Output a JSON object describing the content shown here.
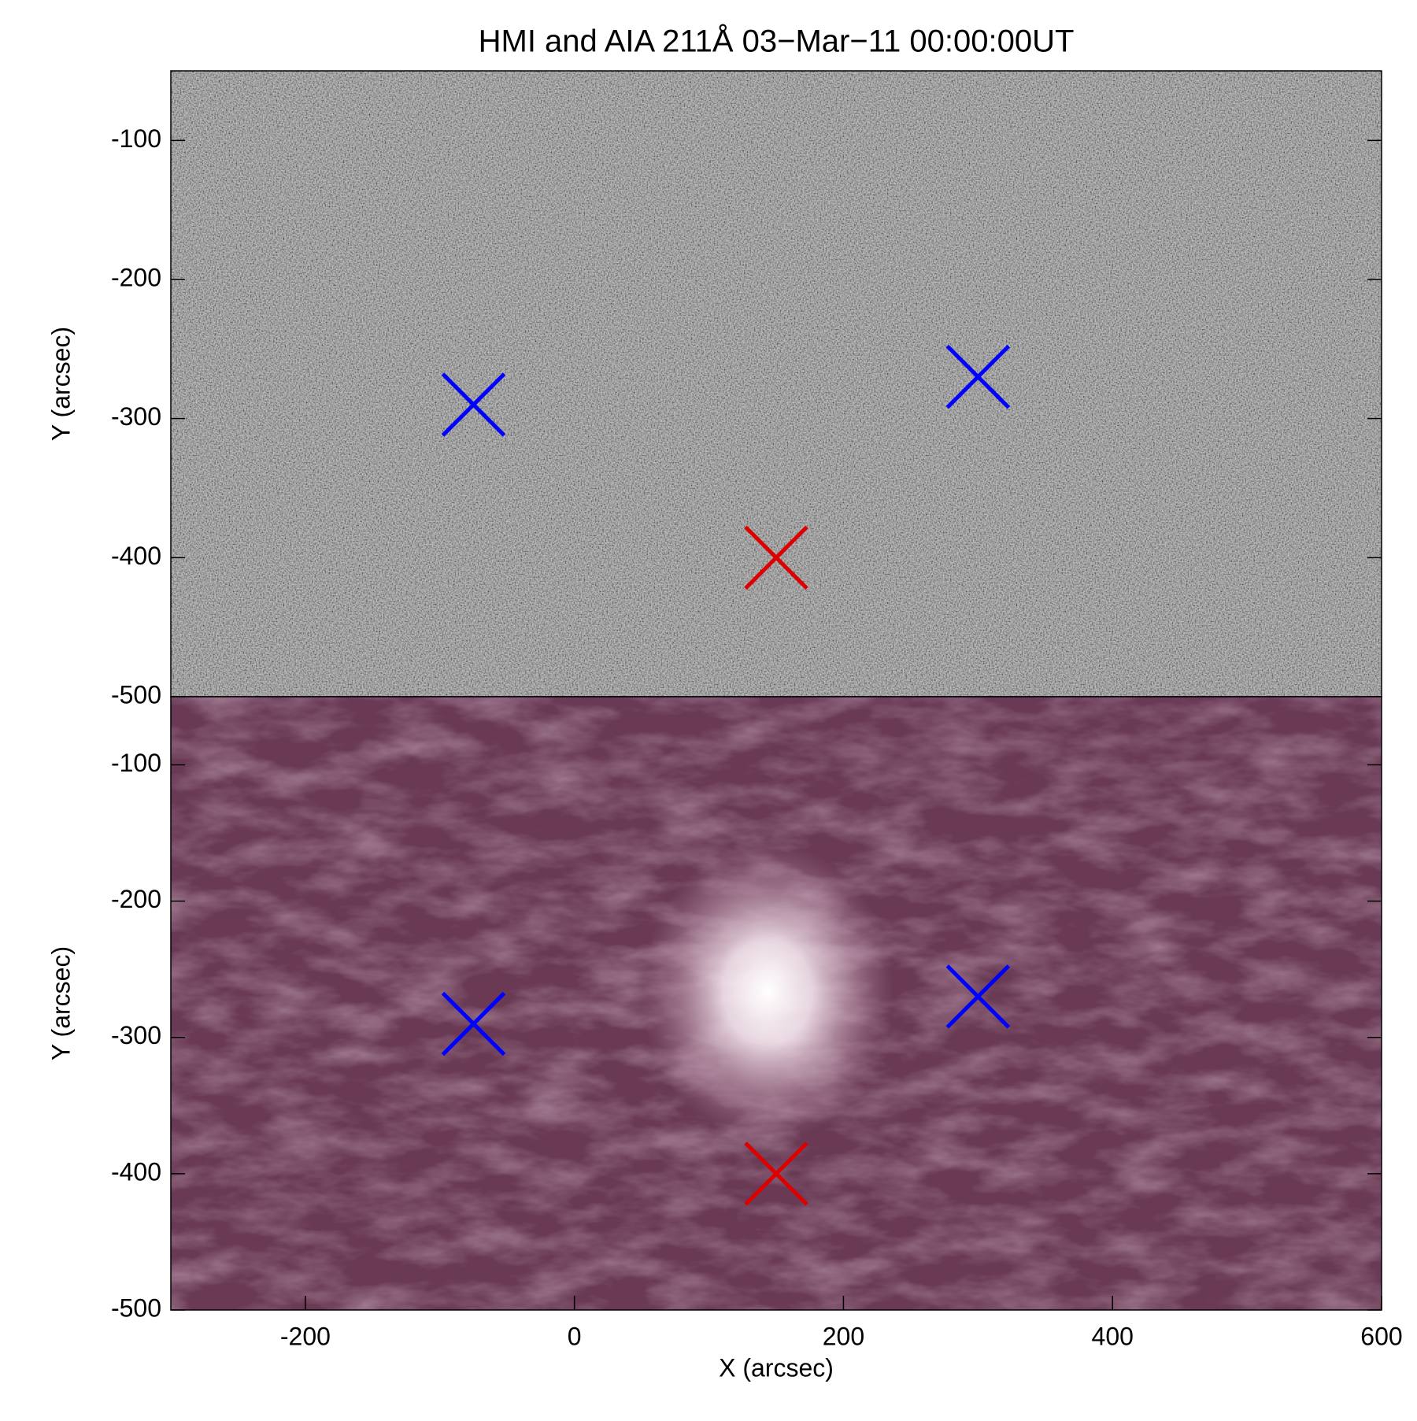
{
  "chart_data": [
    {
      "type": "scatter",
      "title": "HMI and AIA 211Å 03−Mar−11 00:00:00UT",
      "y_label": "Y (arcsec)",
      "xlim": [
        -300,
        600
      ],
      "ylim": [
        -500,
        -50
      ],
      "yticks": [
        -500,
        -400,
        -300,
        -200,
        -100
      ],
      "background": "#808080",
      "series": [
        {
          "color": "#0000ff",
          "x": [
            -75,
            300
          ],
          "values": [
            -290,
            -270
          ]
        },
        {
          "color": "#dd0000",
          "x": [
            150
          ],
          "values": [
            -400
          ]
        }
      ]
    },
    {
      "type": "scatter",
      "y_label": "Y (arcsec)",
      "x_label": "X (arcsec)",
      "xlim": [
        -300,
        600
      ],
      "ylim": [
        -500,
        -50
      ],
      "xticks": [
        -200,
        0,
        200,
        400,
        600
      ],
      "yticks": [
        -500,
        -400,
        -300,
        -200,
        -100
      ],
      "background": "#6a3a55",
      "series": [
        {
          "color": "#0000ff",
          "x": [
            -75,
            300
          ],
          "values": [
            -290,
            -270
          ]
        },
        {
          "color": "#dd0000",
          "x": [
            150
          ],
          "values": [
            -400
          ]
        }
      ]
    }
  ]
}
